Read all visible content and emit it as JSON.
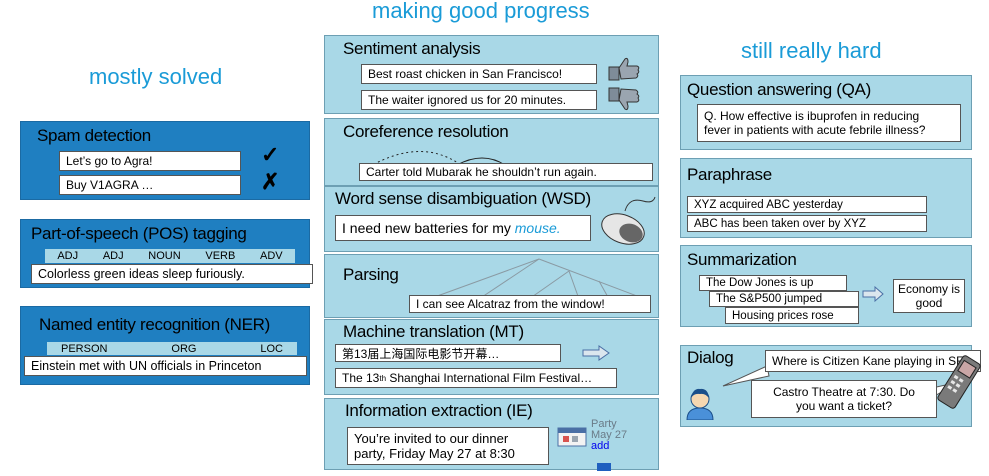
{
  "headers": {
    "mostly_solved": "mostly solved",
    "making_good_progress": "making good progress",
    "still_really_hard": "still really hard"
  },
  "spam": {
    "title": "Spam detection",
    "ex1": "Let’s go to Agra!",
    "ex2": "Buy V1AGRA …",
    "mark1": "✓",
    "mark2": "✗"
  },
  "pos": {
    "title": "Part-of-speech (POS) tagging",
    "tags": [
      "ADJ",
      "ADJ",
      "NOUN",
      "VERB",
      "ADV"
    ],
    "sentence": "Colorless  green  ideas  sleep  furiously."
  },
  "ner": {
    "title": "Named entity recognition (NER)",
    "tags": [
      "PERSON",
      "ORG",
      "LOC"
    ],
    "sentence": "Einstein met with UN officials in Princeton"
  },
  "sentiment": {
    "title": "Sentiment analysis",
    "ex1": "Best roast chicken in San Francisco!",
    "ex2": "The waiter ignored us for 20 minutes."
  },
  "coref": {
    "title": "Coreference resolution",
    "example": "Carter told Mubarak he shouldn’t run again."
  },
  "wsd": {
    "title": "Word sense disambiguation (WSD)",
    "example_pre": "I need new batteries for my ",
    "example_word": "mouse."
  },
  "parsing": {
    "title": "Parsing",
    "example": "I can see Alcatraz from the window!"
  },
  "mt": {
    "title": "Machine translation (MT)",
    "source": "第13届上海国际电影节开幕…",
    "target_pre": "The 13",
    "target_sup": "th",
    "target_post": " Shanghai International Film Festival…"
  },
  "ie": {
    "title": "Information extraction (IE)",
    "example_line1": "You’re invited to our dinner",
    "example_line2": "party, Friday May 27 at 8:30",
    "cal_line1": "Party",
    "cal_line2": "May 27",
    "cal_add": "add"
  },
  "qa": {
    "title": "Question answering (QA)",
    "line1": "Q. How effective is ibuprofen in reducing",
    "line2": "fever in patients with acute febrile illness?"
  },
  "paraphrase": {
    "title": "Paraphrase",
    "ex1": "XYZ acquired ABC yesterday",
    "ex2": "ABC has been taken over by XYZ"
  },
  "summarization": {
    "title": "Summarization",
    "in1": "The Dow Jones is up",
    "in2": "The S&P500 jumped",
    "in3": "Housing prices rose",
    "out_line1": "Economy is",
    "out_line2": "good"
  },
  "dialog": {
    "title": "Dialog",
    "q": "Where is Citizen Kane playing in SF?",
    "a_line1": "Castro Theatre at 7:30. Do",
    "a_line2": "you want a ticket?"
  },
  "colors": {
    "header": "#1a9bd7",
    "panel_light": "#a9d8e7",
    "panel_dark": "#1f7fc1"
  }
}
